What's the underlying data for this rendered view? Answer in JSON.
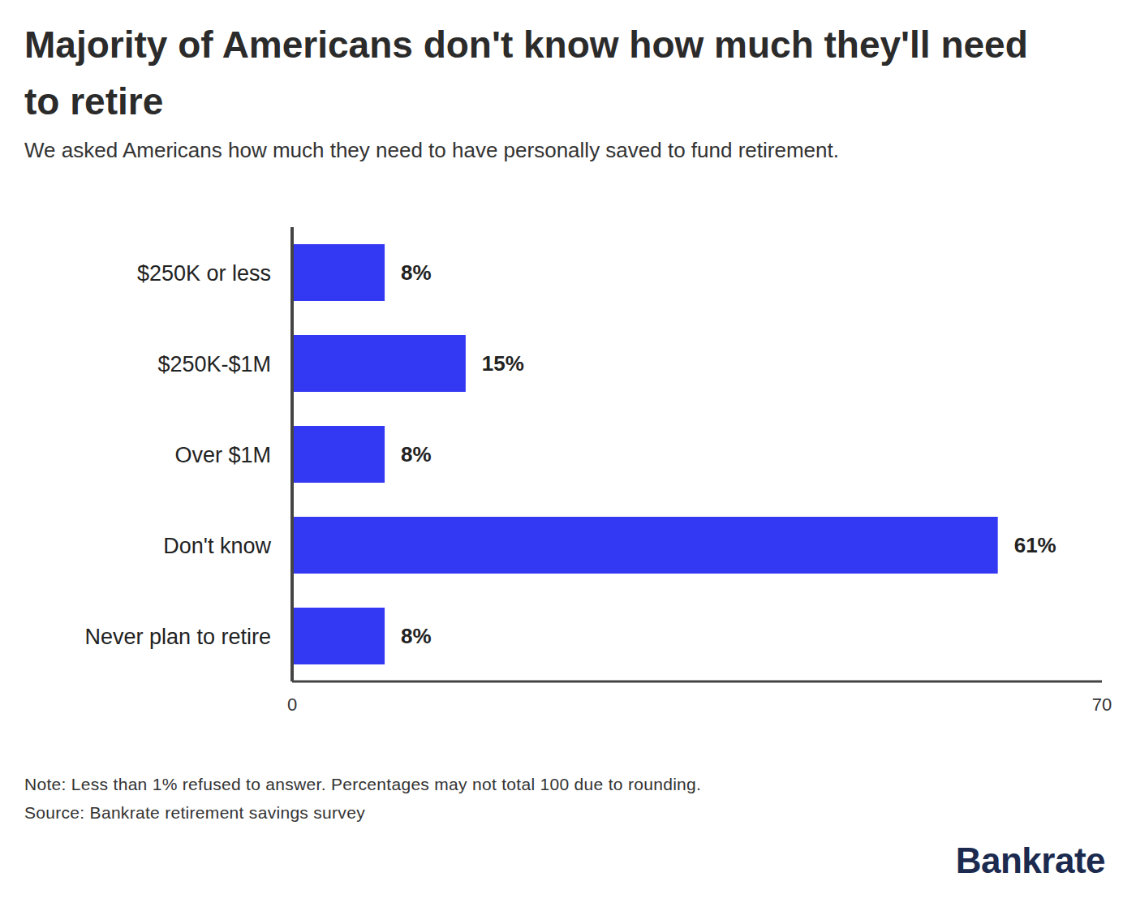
{
  "chart_data": {
    "type": "bar",
    "orientation": "horizontal",
    "title": "Majority of Americans don't know how much they'll need to retire",
    "subtitle": "We asked Americans how much they need to have personally saved to fund retirement.",
    "categories": [
      "$250K or less",
      "$250K-$1M",
      "Over $1M",
      "Don't know",
      "Never plan to retire"
    ],
    "values": [
      8,
      15,
      8,
      61,
      8
    ],
    "value_labels": [
      "8%",
      "15%",
      "8%",
      "61%",
      "8%"
    ],
    "data_labels": true,
    "color": "#3338f2",
    "xlim": [
      0,
      70
    ],
    "xticks": [
      0,
      70
    ],
    "grid": false,
    "annotations": [
      "Note: Less than 1% refused to answer. Percentages may not total 100 due to rounding.",
      "Source: Bankrate retirement savings survey",
      "Bankrate"
    ]
  }
}
